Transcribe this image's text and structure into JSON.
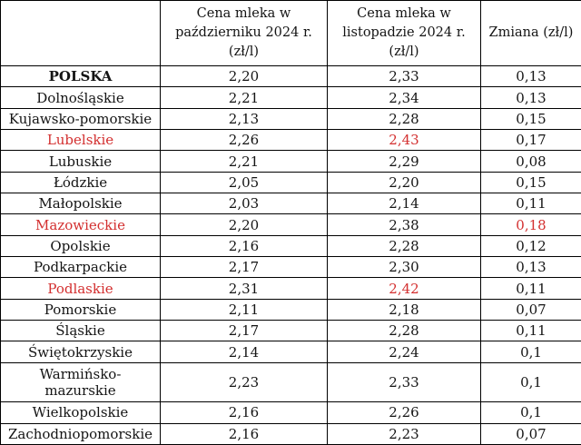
{
  "colors": {
    "text": "#141414",
    "border": "#000000",
    "background": "#ffffff",
    "highlight_red": "#d32f2f"
  },
  "chart_data": {
    "type": "table",
    "columns": [
      "",
      "Cena mleka w październiku 2024 r. (zł/l)",
      "Cena mleka w listopadzie 2024 r. (zł/l)",
      "Zmiana (zł/l)"
    ],
    "rows": [
      {
        "region": "POLSKA",
        "october": "2,20",
        "november": "2,33",
        "change": "0,13",
        "region_bold": true
      },
      {
        "region": "Dolnośląskie",
        "october": "2,21",
        "november": "2,34",
        "change": "0,13"
      },
      {
        "region": "Kujawsko-pomorskie",
        "october": "2,13",
        "november": "2,28",
        "change": "0,15"
      },
      {
        "region": "Lubelskie",
        "october": "2,26",
        "november": "2,43",
        "change": "0,17",
        "region_red": true,
        "november_red": true
      },
      {
        "region": "Lubuskie",
        "october": "2,21",
        "november": "2,29",
        "change": "0,08"
      },
      {
        "region": "Łódzkie",
        "october": "2,05",
        "november": "2,20",
        "change": "0,15"
      },
      {
        "region": "Małopolskie",
        "october": "2,03",
        "november": "2,14",
        "change": "0,11"
      },
      {
        "region": "Mazowieckie",
        "october": "2,20",
        "november": "2,38",
        "change": "0,18",
        "region_red": true,
        "change_red": true
      },
      {
        "region": "Opolskie",
        "october": "2,16",
        "november": "2,28",
        "change": "0,12"
      },
      {
        "region": "Podkarpackie",
        "october": "2,17",
        "november": "2,30",
        "change": "0,13"
      },
      {
        "region": "Podlaskie",
        "october": "2,31",
        "november": "2,42",
        "change": "0,11",
        "region_red": true,
        "november_red": true
      },
      {
        "region": "Pomorskie",
        "october": "2,11",
        "november": "2,18",
        "change": "0,07"
      },
      {
        "region": "Śląskie",
        "october": "2,17",
        "november": "2,28",
        "change": "0,11"
      },
      {
        "region": "Świętokrzyskie",
        "october": "2,14",
        "november": "2,24",
        "change": "0,1"
      },
      {
        "region": "Warmińsko-mazurskie",
        "october": "2,23",
        "november": "2,33",
        "change": "0,1"
      },
      {
        "region": "Wielkopolskie",
        "october": "2,16",
        "november": "2,26",
        "change": "0,1"
      },
      {
        "region": "Zachodniopomorskie",
        "october": "2,16",
        "november": "2,23",
        "change": "0,07"
      }
    ]
  }
}
